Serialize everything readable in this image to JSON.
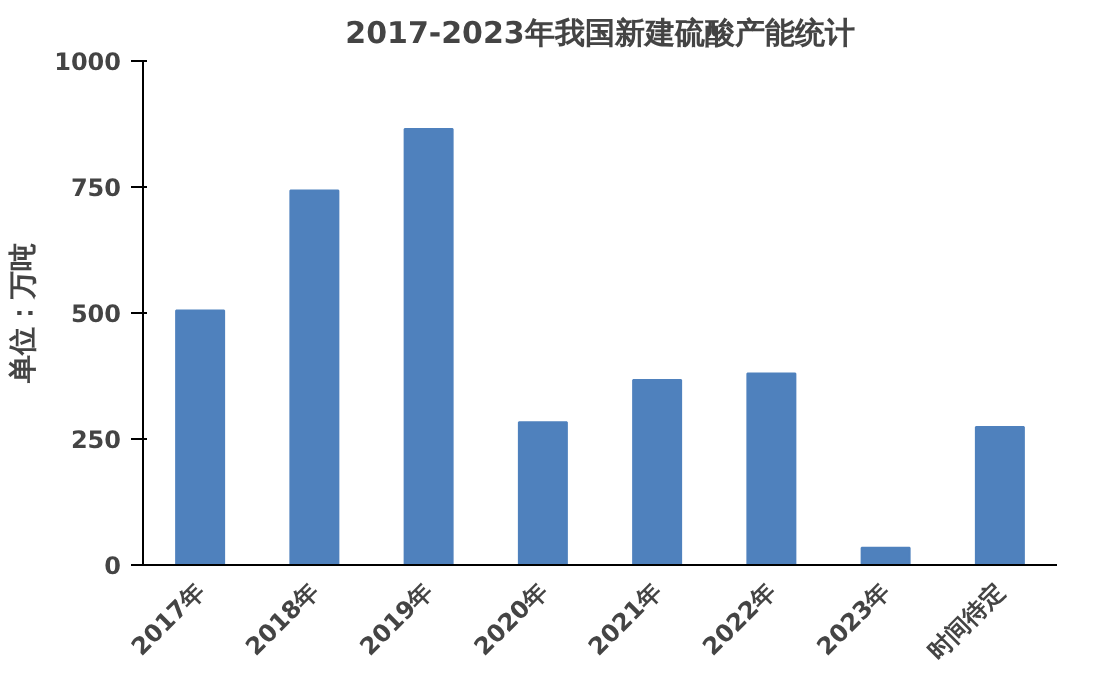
{
  "chart_data": {
    "type": "bar",
    "title": "2017-2023年我国新建硫酸产能统计",
    "ylabel": "单位：万吨",
    "categories": [
      "2017年",
      "2018年",
      "2019年",
      "2020年",
      "2021年",
      "2022年",
      "2023年",
      "时间待定"
    ],
    "values": [
      505,
      743,
      865,
      283,
      367,
      380,
      34,
      274
    ],
    "color": "#4f81bd",
    "ylim": [
      0,
      1000
    ],
    "yticks": [
      0,
      250,
      500,
      750,
      1000
    ],
    "grid": false
  }
}
